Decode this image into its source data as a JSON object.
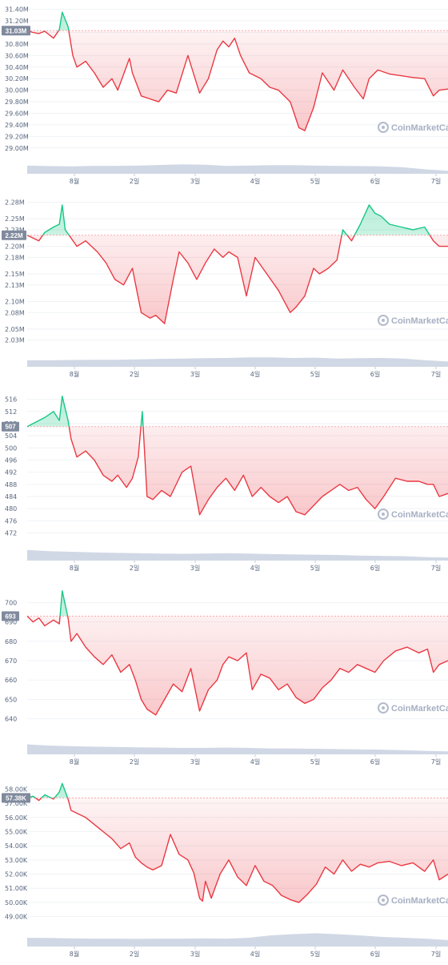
{
  "brand": {
    "watermark": "CoinMarketCap",
    "watermark_icon": "coinmarketcap-logo-icon"
  },
  "colors": {
    "down": "#ea3943",
    "up": "#16c784",
    "volume": "#cfd6e4",
    "tag": "#808a9d",
    "grid": "#eff2f5",
    "baseline": "#ffa6ab"
  },
  "x_axis": {
    "ticks": [
      "8월",
      "2일",
      "3일",
      "4일",
      "5일",
      "6일",
      "7일"
    ]
  },
  "chart_data": [
    {
      "type": "line",
      "x_range": [
        0,
        7.2
      ],
      "ylim": [
        28.9,
        31.45
      ],
      "y_ticks": [
        "29.00M",
        "29.20M",
        "29.40M",
        "29.60M",
        "29.80M",
        "30.00M",
        "30.20M",
        "30.40M",
        "30.60M",
        "30.80M",
        "31.00M",
        "31.20M",
        "31.40M"
      ],
      "baseline": 31.03,
      "current_label": "31.03M",
      "series": [
        {
          "x": [
            0,
            0.1,
            0.2,
            0.3,
            0.45,
            0.55,
            0.6,
            0.7,
            0.78,
            0.85,
            1.0,
            1.15,
            1.3,
            1.45,
            1.55,
            1.75,
            1.8,
            1.95,
            2.1,
            2.25,
            2.4,
            2.55,
            2.75,
            2.95,
            3.1,
            3.25,
            3.35,
            3.45,
            3.55,
            3.65,
            3.8,
            4.0,
            4.15,
            4.3,
            4.5,
            4.65,
            4.75,
            4.9,
            5.05,
            5.25,
            5.4,
            5.6,
            5.75,
            5.85,
            6.0,
            6.2,
            6.4,
            6.6,
            6.8,
            6.95,
            7.05,
            7.2
          ],
          "y": [
            31.03,
            31.0,
            30.98,
            31.02,
            30.9,
            31.05,
            31.35,
            31.1,
            30.6,
            30.4,
            30.5,
            30.3,
            30.05,
            30.2,
            30.0,
            30.55,
            30.3,
            29.9,
            29.85,
            29.8,
            30.0,
            29.95,
            30.6,
            29.95,
            30.2,
            30.7,
            30.85,
            30.75,
            30.9,
            30.6,
            30.3,
            30.2,
            30.05,
            30.0,
            29.8,
            29.35,
            29.3,
            29.7,
            30.3,
            30.0,
            30.35,
            30.05,
            29.85,
            30.2,
            30.35,
            30.28,
            30.25,
            30.22,
            30.2,
            29.9,
            30.0,
            30.02
          ]
        }
      ],
      "volume": [
        0.28,
        0.26,
        0.25,
        0.27,
        0.27,
        0.28,
        0.3,
        0.32,
        0.31,
        0.27,
        0.28,
        0.29,
        0.29,
        0.28,
        0.27,
        0.26,
        0.25,
        0.22,
        0.15,
        0.1
      ]
    },
    {
      "type": "line",
      "x_range": [
        0,
        7.2
      ],
      "ylim": [
        2.018,
        2.285
      ],
      "y_ticks": [
        "2.03M",
        "2.05M",
        "2.08M",
        "2.10M",
        "2.13M",
        "2.15M",
        "2.18M",
        "2.20M",
        "2.23M",
        "2.25M",
        "2.28M"
      ],
      "baseline": 2.22,
      "current_label": "2.22M",
      "series": [
        {
          "x": [
            0,
            0.1,
            0.2,
            0.3,
            0.45,
            0.55,
            0.6,
            0.65,
            0.75,
            0.85,
            1.0,
            1.2,
            1.35,
            1.5,
            1.65,
            1.8,
            1.95,
            2.1,
            2.2,
            2.35,
            2.5,
            2.6,
            2.75,
            2.9,
            3.05,
            3.2,
            3.35,
            3.45,
            3.6,
            3.75,
            3.9,
            4.1,
            4.3,
            4.5,
            4.6,
            4.75,
            4.9,
            5.0,
            5.15,
            5.3,
            5.4,
            5.55,
            5.7,
            5.85,
            5.95,
            6.05,
            6.2,
            6.4,
            6.6,
            6.8,
            6.95,
            7.05,
            7.2
          ],
          "y": [
            2.22,
            2.215,
            2.21,
            2.225,
            2.235,
            2.24,
            2.275,
            2.23,
            2.215,
            2.2,
            2.21,
            2.19,
            2.17,
            2.14,
            2.13,
            2.16,
            2.08,
            2.07,
            2.075,
            2.06,
            2.14,
            2.19,
            2.17,
            2.14,
            2.17,
            2.195,
            2.18,
            2.19,
            2.18,
            2.11,
            2.18,
            2.15,
            2.12,
            2.08,
            2.09,
            2.11,
            2.16,
            2.15,
            2.16,
            2.175,
            2.23,
            2.21,
            2.24,
            2.275,
            2.26,
            2.255,
            2.24,
            2.235,
            2.23,
            2.235,
            2.21,
            2.2,
            2.2
          ]
        }
      ],
      "volume": [
        0.22,
        0.22,
        0.23,
        0.24,
        0.24,
        0.25,
        0.27,
        0.28,
        0.29,
        0.3,
        0.32,
        0.32,
        0.3,
        0.31,
        0.28,
        0.29,
        0.3,
        0.28,
        0.22,
        0.18
      ]
    },
    {
      "type": "line",
      "x_range": [
        0,
        7.2
      ],
      "ylim": [
        469.5,
        518
      ],
      "y_ticks": [
        "472",
        "476",
        "480",
        "484",
        "488",
        "492",
        "496",
        "500",
        "504",
        "508",
        "512",
        "516"
      ],
      "baseline": 507,
      "current_label": "507",
      "series": [
        {
          "x": [
            0,
            0.1,
            0.2,
            0.3,
            0.45,
            0.55,
            0.6,
            0.7,
            0.75,
            0.85,
            1.0,
            1.15,
            1.3,
            1.45,
            1.55,
            1.7,
            1.8,
            1.9,
            1.97,
            2.05,
            2.15,
            2.3,
            2.45,
            2.65,
            2.8,
            2.95,
            3.1,
            3.25,
            3.4,
            3.55,
            3.7,
            3.85,
            4.0,
            4.15,
            4.3,
            4.45,
            4.6,
            4.75,
            4.9,
            5.05,
            5.2,
            5.35,
            5.5,
            5.65,
            5.8,
            5.95,
            6.1,
            6.3,
            6.5,
            6.7,
            6.85,
            6.95,
            7.05,
            7.2
          ],
          "y": [
            507,
            508,
            509,
            510,
            512,
            509,
            517,
            509,
            503,
            497,
            499,
            496,
            491,
            489,
            491,
            487,
            490,
            497,
            512,
            484,
            483,
            486,
            484,
            492,
            494,
            478,
            483,
            487,
            490,
            486,
            491,
            484,
            487,
            484,
            482,
            484,
            479,
            478,
            481,
            484,
            486,
            488,
            486,
            487,
            483,
            480,
            484,
            490,
            489,
            489,
            488,
            488,
            484,
            485
          ]
        }
      ],
      "volume": [
        0.36,
        0.32,
        0.3,
        0.28,
        0.26,
        0.25,
        0.24,
        0.23,
        0.24,
        0.25,
        0.24,
        0.22,
        0.21,
        0.2,
        0.19,
        0.17,
        0.16,
        0.15,
        0.12,
        0.1
      ]
    },
    {
      "type": "line",
      "x_range": [
        0,
        7.2
      ],
      "ylim": [
        632,
        708
      ],
      "y_ticks": [
        "640",
        "650",
        "660",
        "670",
        "680",
        "690",
        "700"
      ],
      "baseline": 693,
      "current_label": "693",
      "series": [
        {
          "x": [
            0,
            0.1,
            0.2,
            0.3,
            0.45,
            0.55,
            0.6,
            0.7,
            0.75,
            0.85,
            1.0,
            1.15,
            1.3,
            1.45,
            1.6,
            1.75,
            1.85,
            1.95,
            2.05,
            2.2,
            2.35,
            2.5,
            2.65,
            2.8,
            2.95,
            3.1,
            3.25,
            3.35,
            3.45,
            3.6,
            3.75,
            3.85,
            4.0,
            4.15,
            4.3,
            4.45,
            4.6,
            4.75,
            4.9,
            5.05,
            5.2,
            5.35,
            5.5,
            5.65,
            5.8,
            5.95,
            6.1,
            6.3,
            6.5,
            6.7,
            6.85,
            6.95,
            7.05,
            7.2
          ],
          "y": [
            693,
            690,
            692,
            688,
            691,
            689,
            706,
            692,
            680,
            684,
            677,
            672,
            668,
            673,
            664,
            668,
            660,
            650,
            645,
            642,
            650,
            658,
            654,
            666,
            644,
            655,
            660,
            668,
            672,
            670,
            674,
            655,
            663,
            661,
            655,
            658,
            651,
            648,
            650,
            656,
            660,
            666,
            664,
            668,
            666,
            664,
            670,
            675,
            677,
            674,
            676,
            664,
            668,
            670
          ]
        }
      ],
      "volume": [
        0.34,
        0.3,
        0.28,
        0.26,
        0.25,
        0.24,
        0.23,
        0.22,
        0.22,
        0.23,
        0.22,
        0.2,
        0.2,
        0.19,
        0.18,
        0.17,
        0.16,
        0.14,
        0.12,
        0.1
      ]
    },
    {
      "type": "line",
      "x_range": [
        0,
        7.2
      ],
      "ylim": [
        48.3,
        58.7
      ],
      "y_ticks": [
        "49.00K",
        "50.00K",
        "51.00K",
        "52.00K",
        "53.00K",
        "54.00K",
        "55.00K",
        "56.00K",
        "57.00K",
        "58.00K"
      ],
      "baseline": 57.38,
      "current_label": "57.38K",
      "series": [
        {
          "x": [
            0,
            0.1,
            0.2,
            0.3,
            0.45,
            0.55,
            0.6,
            0.7,
            0.75,
            0.85,
            1.0,
            1.15,
            1.3,
            1.45,
            1.6,
            1.75,
            1.85,
            1.95,
            2.05,
            2.15,
            2.3,
            2.45,
            2.6,
            2.75,
            2.85,
            2.95,
            3.0,
            3.05,
            3.15,
            3.3,
            3.45,
            3.6,
            3.75,
            3.9,
            4.05,
            4.2,
            4.35,
            4.5,
            4.65,
            4.8,
            4.95,
            5.1,
            5.25,
            5.4,
            5.55,
            5.7,
            5.85,
            6.0,
            6.2,
            6.4,
            6.6,
            6.8,
            6.95,
            7.05,
            7.2
          ],
          "y": [
            57.38,
            57.5,
            57.2,
            57.6,
            57.3,
            57.8,
            58.4,
            57.3,
            56.5,
            56.3,
            56.0,
            55.5,
            55.0,
            54.5,
            53.8,
            54.2,
            53.2,
            52.8,
            52.5,
            52.3,
            52.6,
            54.8,
            53.4,
            53.0,
            52.1,
            50.3,
            50.1,
            51.5,
            50.3,
            52.0,
            53.0,
            51.8,
            51.2,
            52.6,
            51.5,
            51.2,
            50.5,
            50.2,
            50.0,
            50.6,
            51.3,
            52.5,
            52.0,
            53.0,
            52.2,
            52.7,
            52.5,
            52.8,
            52.9,
            52.6,
            52.8,
            52.2,
            53.0,
            51.6,
            52.0
          ]
        }
      ],
      "volume": [
        0.3,
        0.29,
        0.28,
        0.27,
        0.27,
        0.26,
        0.27,
        0.27,
        0.28,
        0.27,
        0.3,
        0.38,
        0.42,
        0.45,
        0.42,
        0.38,
        0.33,
        0.3,
        0.27,
        0.22
      ]
    }
  ]
}
